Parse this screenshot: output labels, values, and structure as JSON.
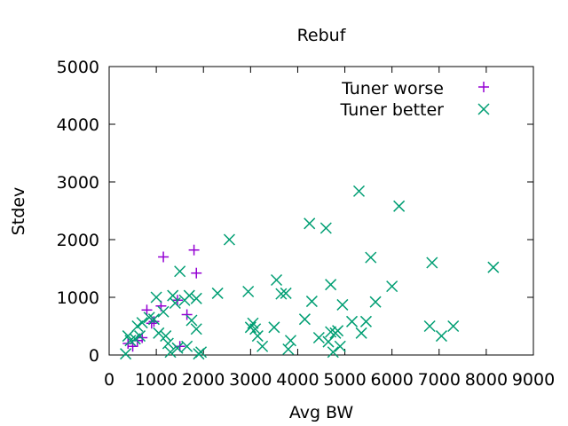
{
  "chart_data": {
    "type": "scatter",
    "title": "Rebuf",
    "xlabel": "Avg BW",
    "ylabel": "Stdev",
    "xlim": [
      0,
      9000
    ],
    "ylim": [
      0,
      5000
    ],
    "xticks": [
      0,
      1000,
      2000,
      3000,
      4000,
      5000,
      6000,
      7000,
      8000,
      9000
    ],
    "yticks": [
      0,
      1000,
      2000,
      3000,
      4000,
      5000
    ],
    "grid": false,
    "legend_position": "top-right",
    "series": [
      {
        "name": "Tuner worse",
        "marker": "plus",
        "color": "#9400d3",
        "points": [
          [
            400,
            200
          ],
          [
            500,
            150
          ],
          [
            600,
            250
          ],
          [
            700,
            300
          ],
          [
            800,
            780
          ],
          [
            900,
            550
          ],
          [
            950,
            580
          ],
          [
            1100,
            850
          ],
          [
            1150,
            1700
          ],
          [
            1450,
            950
          ],
          [
            1500,
            150
          ],
          [
            1650,
            700
          ],
          [
            1800,
            1820
          ],
          [
            1850,
            1420
          ]
        ]
      },
      {
        "name": "Tuner better",
        "marker": "cross",
        "color": "#009e73",
        "points": [
          [
            350,
            20
          ],
          [
            400,
            330
          ],
          [
            450,
            250
          ],
          [
            550,
            280
          ],
          [
            600,
            500
          ],
          [
            650,
            330
          ],
          [
            700,
            560
          ],
          [
            850,
            650
          ],
          [
            950,
            620
          ],
          [
            1000,
            1000
          ],
          [
            1050,
            380
          ],
          [
            1150,
            750
          ],
          [
            1200,
            330
          ],
          [
            1250,
            200
          ],
          [
            1300,
            50
          ],
          [
            1350,
            1030
          ],
          [
            1400,
            900
          ],
          [
            1450,
            120
          ],
          [
            1500,
            1450
          ],
          [
            1600,
            950
          ],
          [
            1650,
            150
          ],
          [
            1700,
            1030
          ],
          [
            1750,
            600
          ],
          [
            1850,
            450
          ],
          [
            1850,
            980
          ],
          [
            1900,
            20
          ],
          [
            1950,
            50
          ],
          [
            2300,
            1070
          ],
          [
            2550,
            2000
          ],
          [
            2950,
            1100
          ],
          [
            3000,
            480
          ],
          [
            3050,
            550
          ],
          [
            3100,
            450
          ],
          [
            3150,
            330
          ],
          [
            3250,
            150
          ],
          [
            3500,
            480
          ],
          [
            3550,
            1300
          ],
          [
            3650,
            1060
          ],
          [
            3750,
            1070
          ],
          [
            3800,
            100
          ],
          [
            3850,
            250
          ],
          [
            4150,
            620
          ],
          [
            4250,
            2280
          ],
          [
            4300,
            930
          ],
          [
            4450,
            300
          ],
          [
            4600,
            2200
          ],
          [
            4650,
            230
          ],
          [
            4700,
            400
          ],
          [
            4700,
            1220
          ],
          [
            4750,
            50
          ],
          [
            4800,
            380
          ],
          [
            4850,
            420
          ],
          [
            4900,
            150
          ],
          [
            4950,
            870
          ],
          [
            5150,
            580
          ],
          [
            5300,
            2840
          ],
          [
            5350,
            380
          ],
          [
            5450,
            580
          ],
          [
            5550,
            1690
          ],
          [
            5650,
            920
          ],
          [
            6000,
            1190
          ],
          [
            6150,
            2580
          ],
          [
            6800,
            500
          ],
          [
            6850,
            1600
          ],
          [
            7050,
            330
          ],
          [
            7300,
            500
          ],
          [
            8150,
            1520
          ]
        ]
      }
    ]
  }
}
